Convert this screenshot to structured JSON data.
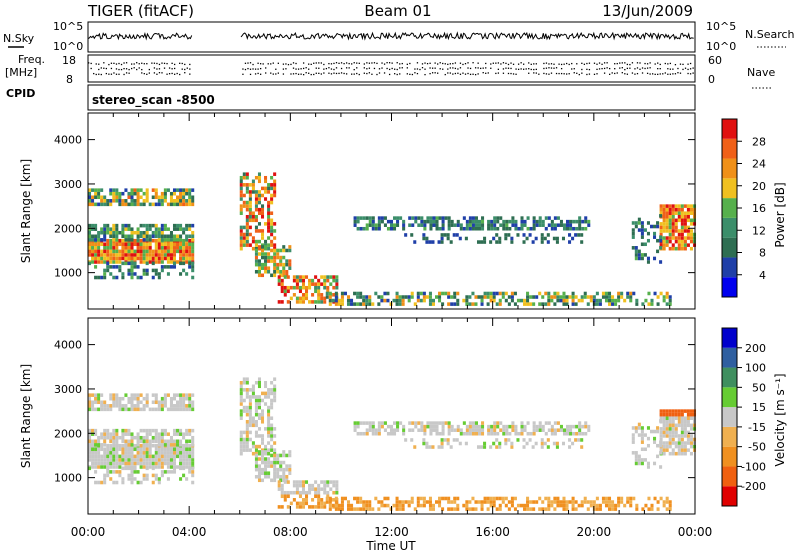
{
  "header": {
    "left": "TIGER (fitACF)",
    "center": "Beam 01",
    "right": "13/Jun/2009"
  },
  "housekeeping": {
    "nsky_label": "N.Sky",
    "nsearch_label": "N.Search",
    "noise_ticks_left": [
      "10^5",
      "10^0"
    ],
    "noise_ticks_right": [
      "10^5",
      "10^0"
    ],
    "freq_label_line1": "Freq.",
    "freq_label_line2": "[MHz]",
    "freq_ticks": [
      "18",
      "8"
    ],
    "nave_label": "Nave",
    "nave_ticks": [
      "60",
      "0"
    ],
    "cpid_label": "CPID",
    "cpid_value": "stereo_scan -8500"
  },
  "colors": {
    "power_scale": [
      "#0000ee",
      "#1f3fa8",
      "#2e6e52",
      "#3b8e6a",
      "#56b04c",
      "#f0c020",
      "#f09018",
      "#f06018",
      "#e01010"
    ],
    "velocity_scale": [
      "#e00000",
      "#f06010",
      "#f09020",
      "#f0b050",
      "#c8c8c8",
      "#66cc33",
      "#3f8f5f",
      "#2f5fa0",
      "#0000cc"
    ]
  },
  "chart_data": [
    {
      "type": "heatmap",
      "title": "",
      "ylabel": "Slant Range [km]",
      "xlabel": "",
      "x_range_hours": [
        0,
        24
      ],
      "xticks": [
        "00:00",
        "04:00",
        "08:00",
        "12:00",
        "16:00",
        "20:00",
        "00:00"
      ],
      "ylim": [
        180,
        4600
      ],
      "yticks": [
        1000,
        2000,
        3000,
        4000
      ],
      "colorbar": {
        "label": "Power [dB]",
        "ticks": [
          4,
          8,
          12,
          16,
          20,
          24,
          28
        ],
        "range": [
          0,
          30
        ]
      },
      "data_gap_hours": [
        4.1,
        6.0
      ]
    },
    {
      "type": "heatmap",
      "title": "",
      "ylabel": "Slant Range [km]",
      "xlabel": "Time UT",
      "x_range_hours": [
        0,
        24
      ],
      "xticks": [
        "00:00",
        "04:00",
        "08:00",
        "12:00",
        "16:00",
        "20:00",
        "00:00"
      ],
      "ylim": [
        180,
        4600
      ],
      "yticks": [
        1000,
        2000,
        3000,
        4000
      ],
      "colorbar": {
        "label": "Velocity [m s⁻¹]",
        "ticks": [
          200,
          100,
          50,
          15,
          -15,
          -50,
          -100,
          -200
        ],
        "range": [
          -250,
          250
        ]
      },
      "data_gap_hours": [
        4.1,
        6.0
      ]
    }
  ]
}
